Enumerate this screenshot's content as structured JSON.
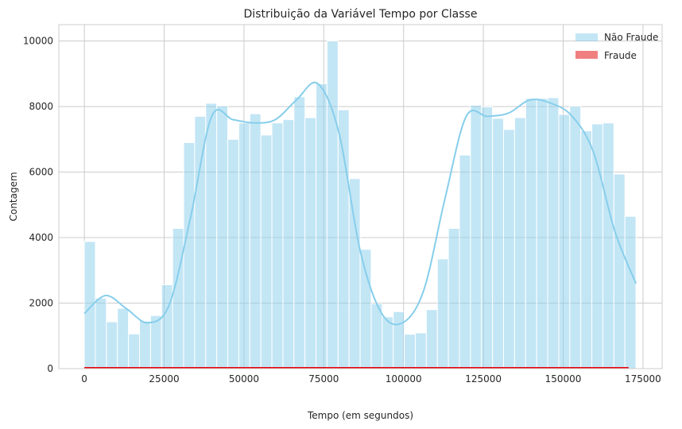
{
  "chart_data": {
    "type": "histogram",
    "title": "Distribuição da Variável Tempo por Classe",
    "xlabel": "Tempo (em segundos)",
    "ylabel": "Contagem",
    "xlim": [
      -8000,
      181000
    ],
    "ylim": [
      0,
      10500
    ],
    "xticks": [
      0,
      25000,
      50000,
      75000,
      100000,
      125000,
      150000,
      175000
    ],
    "yticks": [
      0,
      2000,
      4000,
      6000,
      8000,
      10000
    ],
    "grid": true,
    "legend_position": "top-right",
    "bin_start": 0,
    "bin_width": 3456,
    "series": [
      {
        "name": "Não Fraude",
        "color": "#87ceeb",
        "kde": true,
        "kde_values": [
          1680,
          2230,
          1820,
          1400,
          1950,
          4600,
          7700,
          7600,
          7500,
          7600,
          8200,
          8700,
          7200,
          3600,
          1700,
          1400,
          2400,
          5200,
          7700,
          7700,
          7800,
          8200,
          8100,
          7700,
          6600,
          4200,
          2600
        ],
        "values": [
          3880,
          2150,
          1430,
          1840,
          1060,
          1450,
          1620,
          2560,
          4280,
          6900,
          7700,
          8100,
          8020,
          7000,
          7500,
          7780,
          7130,
          7500,
          7600,
          8300,
          7660,
          8700,
          10000,
          7900,
          5800,
          3640,
          1980,
          1580,
          1740,
          1050,
          1090,
          1800,
          3350,
          4280,
          6520,
          8040,
          7990,
          7640,
          7300,
          7660,
          8250,
          8250,
          8270,
          7760,
          8010,
          7260,
          7470,
          7500,
          5940,
          4650
        ]
      },
      {
        "name": "Fraude",
        "color": "#f08080",
        "line_color": "#e8000b",
        "x_end": 170500,
        "values": [
          10,
          8,
          12,
          6,
          9,
          11,
          7,
          10,
          8,
          12,
          9,
          14,
          10,
          8,
          11,
          9,
          7,
          10,
          12,
          8,
          9,
          11,
          10,
          8,
          12,
          9,
          10,
          7,
          11,
          9,
          8,
          10,
          12,
          9,
          11,
          8,
          10,
          9,
          12,
          10,
          8,
          11,
          9,
          10,
          12,
          8,
          9,
          11,
          10,
          8
        ]
      }
    ]
  }
}
